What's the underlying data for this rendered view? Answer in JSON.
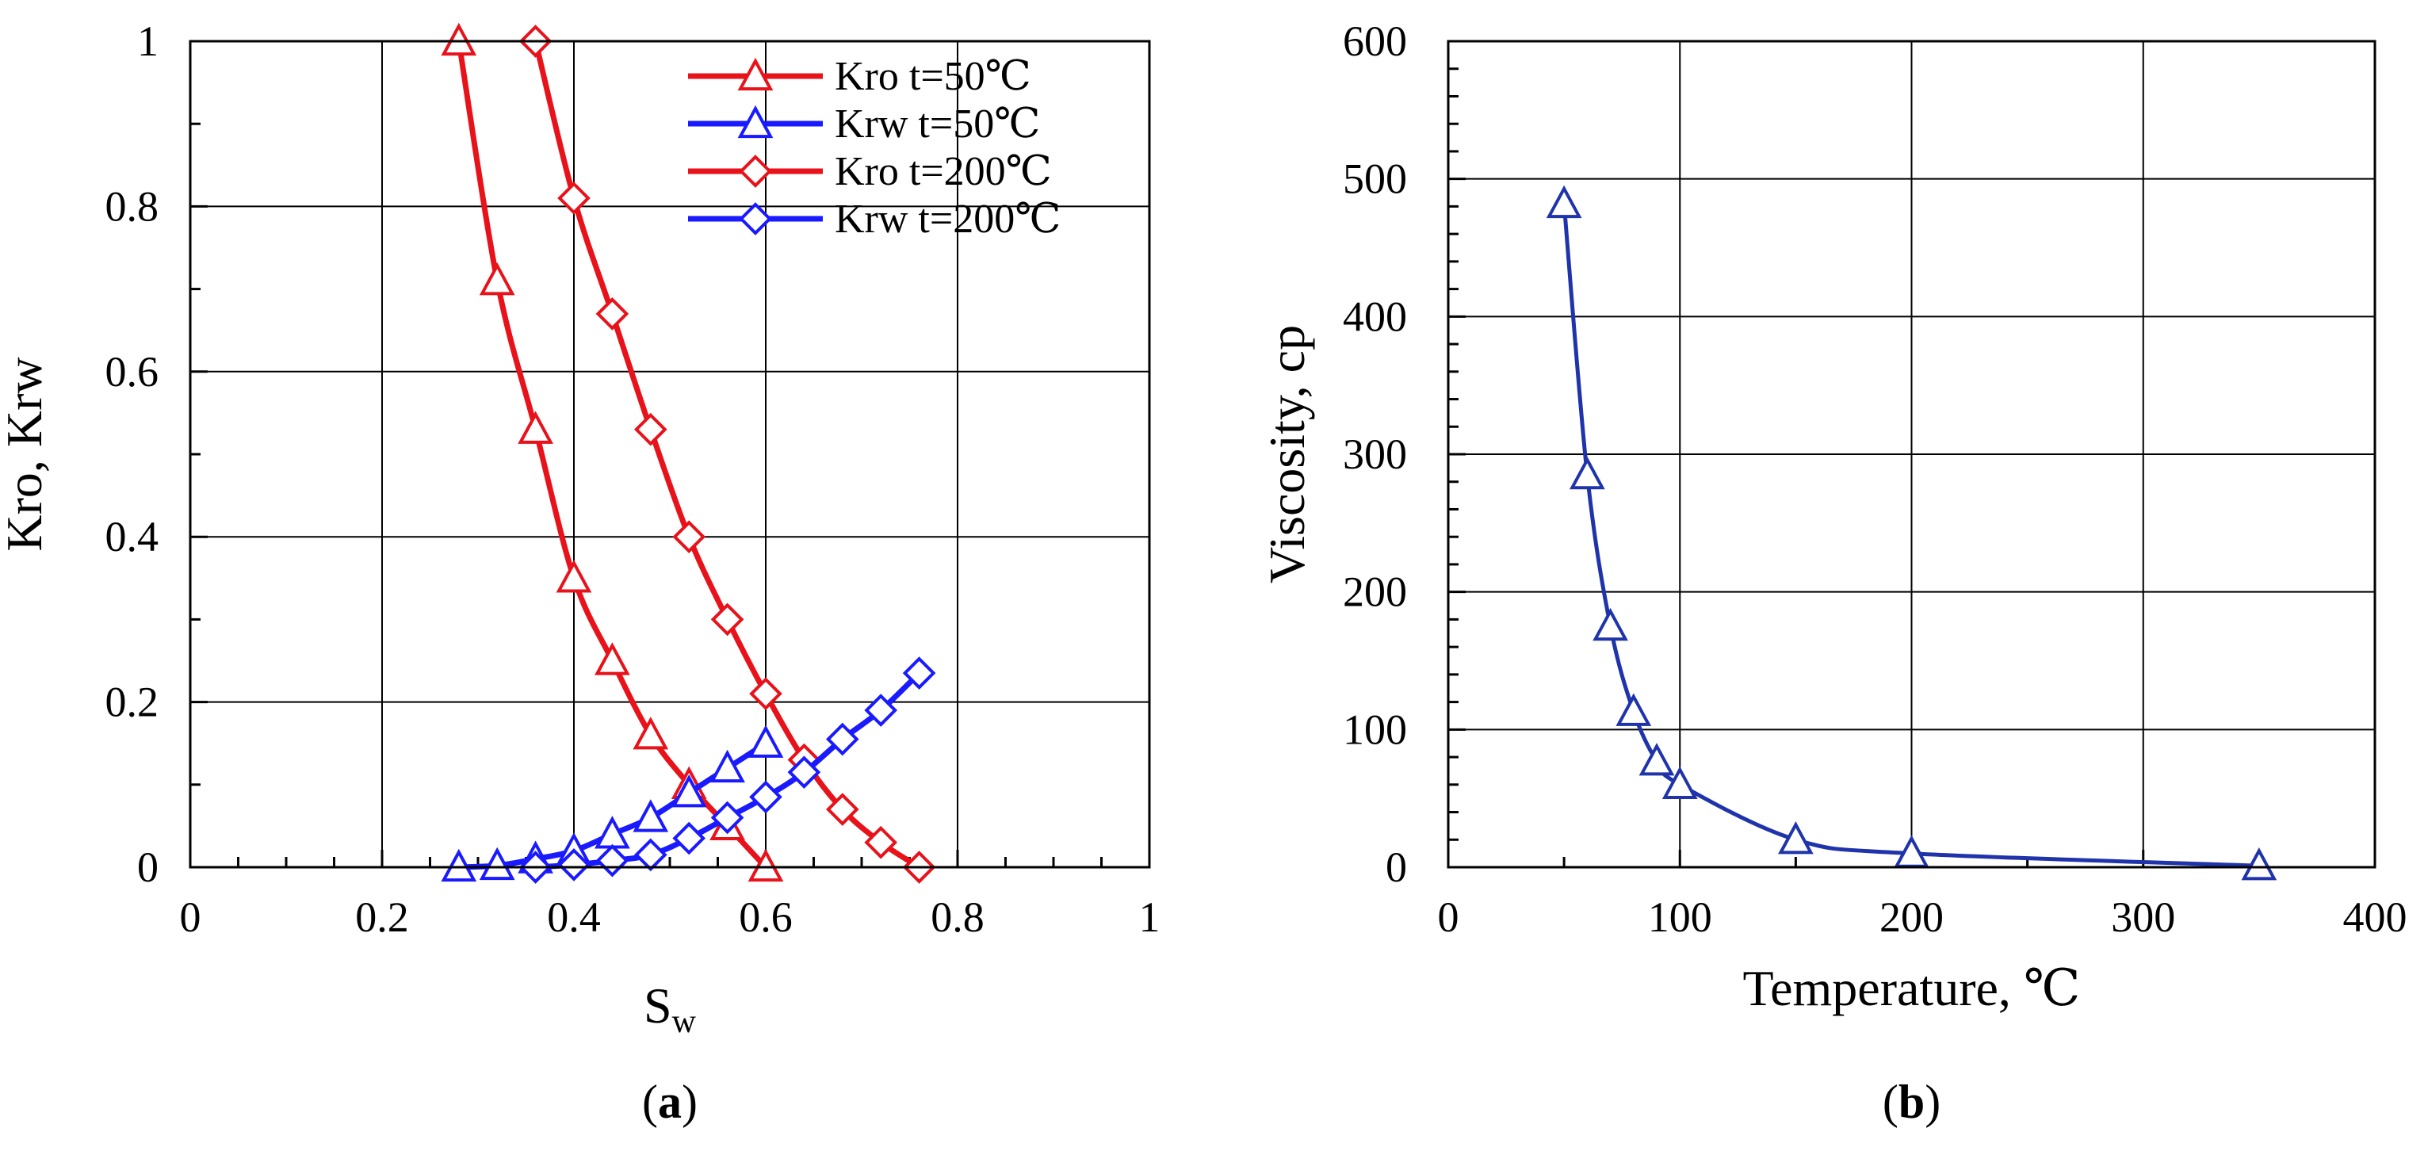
{
  "panels": {
    "a": {
      "open": "(",
      "letter": "a",
      "close": ")"
    },
    "b": {
      "open": "(",
      "letter": "b",
      "close": ")"
    }
  },
  "chart_data": [
    {
      "id": "a",
      "type": "line",
      "title": "",
      "xlabel": "S",
      "xlabel_sub": "w",
      "ylabel": "Kro, Krw",
      "xlim": [
        0,
        1
      ],
      "ylim": [
        0,
        1
      ],
      "xticks": [
        0,
        0.2,
        0.4,
        0.6,
        0.8,
        1
      ],
      "yticks": [
        0,
        0.2,
        0.4,
        0.6,
        0.8,
        1
      ],
      "xtick_labels": [
        "0",
        "0.2",
        "0.4",
        "0.6",
        "0.8",
        "1"
      ],
      "ytick_labels": [
        "0",
        "0.2",
        "0.4",
        "0.6",
        "0.8",
        "1"
      ],
      "grid": true,
      "legend_position": "top-right",
      "series": [
        {
          "name": "Kro  t=50℃",
          "color": "#e8121b",
          "marker": "triangle",
          "x": [
            0.28,
            0.32,
            0.36,
            0.4,
            0.44,
            0.48,
            0.52,
            0.56,
            0.6
          ],
          "y": [
            1.0,
            0.71,
            0.53,
            0.35,
            0.25,
            0.16,
            0.1,
            0.05,
            0.0
          ]
        },
        {
          "name": "Krw t=50℃",
          "color": "#1a1aff",
          "marker": "triangle",
          "x": [
            0.28,
            0.32,
            0.36,
            0.4,
            0.44,
            0.48,
            0.52,
            0.56,
            0.6
          ],
          "y": [
            0.0,
            0.002,
            0.01,
            0.02,
            0.04,
            0.06,
            0.09,
            0.12,
            0.15
          ]
        },
        {
          "name": "Kro  t=200℃",
          "color": "#e8121b",
          "marker": "diamond",
          "x": [
            0.36,
            0.4,
            0.44,
            0.48,
            0.52,
            0.56,
            0.6,
            0.64,
            0.68,
            0.72,
            0.76
          ],
          "y": [
            1.0,
            0.81,
            0.67,
            0.53,
            0.4,
            0.3,
            0.21,
            0.13,
            0.07,
            0.03,
            0.0
          ]
        },
        {
          "name": "Krw t=200℃",
          "color": "#1a1aff",
          "marker": "diamond",
          "x": [
            0.36,
            0.4,
            0.44,
            0.48,
            0.52,
            0.56,
            0.6,
            0.64,
            0.68,
            0.72,
            0.76
          ],
          "y": [
            0.0,
            0.003,
            0.008,
            0.015,
            0.035,
            0.06,
            0.085,
            0.115,
            0.155,
            0.19,
            0.235
          ]
        }
      ]
    },
    {
      "id": "b",
      "type": "line",
      "title": "",
      "xlabel": "Temperature, ℃",
      "ylabel": "Viscosity, cp",
      "xlim": [
        0,
        400
      ],
      "ylim": [
        0,
        600
      ],
      "xticks": [
        0,
        100,
        200,
        300,
        400
      ],
      "yticks": [
        0,
        100,
        200,
        300,
        400,
        500,
        600
      ],
      "xtick_labels": [
        "0",
        "100",
        "200",
        "300",
        "400"
      ],
      "ytick_labels": [
        "0",
        "100",
        "200",
        "300",
        "400",
        "500",
        "600"
      ],
      "grid": true,
      "series": [
        {
          "name": "Viscosity",
          "color": "#1f33aa",
          "marker": "triangle",
          "x": [
            50,
            60,
            70,
            80,
            90,
            100,
            150,
            200,
            350
          ],
          "y": [
            482,
            285,
            175,
            113,
            77,
            60,
            20,
            10,
            1
          ]
        }
      ]
    }
  ]
}
